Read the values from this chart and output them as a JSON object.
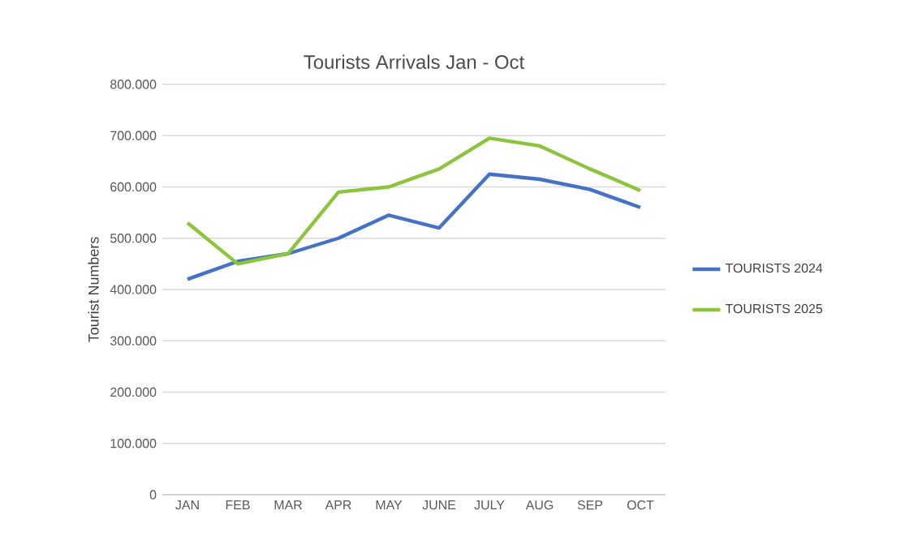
{
  "chart_data": {
    "type": "line",
    "title": "Tourists Arrivals Jan - Oct",
    "ylabel": "Tourist Numbers",
    "categories": [
      "JAN",
      "FEB",
      "MAR",
      "APR",
      "MAY",
      "JUNE",
      "JULY",
      "AUG",
      "SEP",
      "OCT"
    ],
    "series": [
      {
        "name": "TOURISTS 2024",
        "color": "#4472c4",
        "values": [
          420000,
          455000,
          470000,
          500000,
          545000,
          520000,
          625000,
          615000,
          595000,
          560000
        ]
      },
      {
        "name": "TOURISTS 2025",
        "color": "#8cc43c",
        "values": [
          530000,
          450000,
          470000,
          590000,
          600000,
          635000,
          695000,
          680000,
          635000,
          593000
        ]
      }
    ],
    "ylim": [
      0,
      800000
    ],
    "yticks": [
      {
        "value": 0,
        "label": "0"
      },
      {
        "value": 100000,
        "label": "100.000"
      },
      {
        "value": 200000,
        "label": "200.000"
      },
      {
        "value": 300000,
        "label": "300.000"
      },
      {
        "value": 400000,
        "label": "400.000"
      },
      {
        "value": 500000,
        "label": "500.000"
      },
      {
        "value": 600000,
        "label": "600.000"
      },
      {
        "value": 700000,
        "label": "700.000"
      },
      {
        "value": 800000,
        "label": "800.000"
      }
    ],
    "grid": "y",
    "legend": "right",
    "marker": "none",
    "line_style": "solid"
  }
}
